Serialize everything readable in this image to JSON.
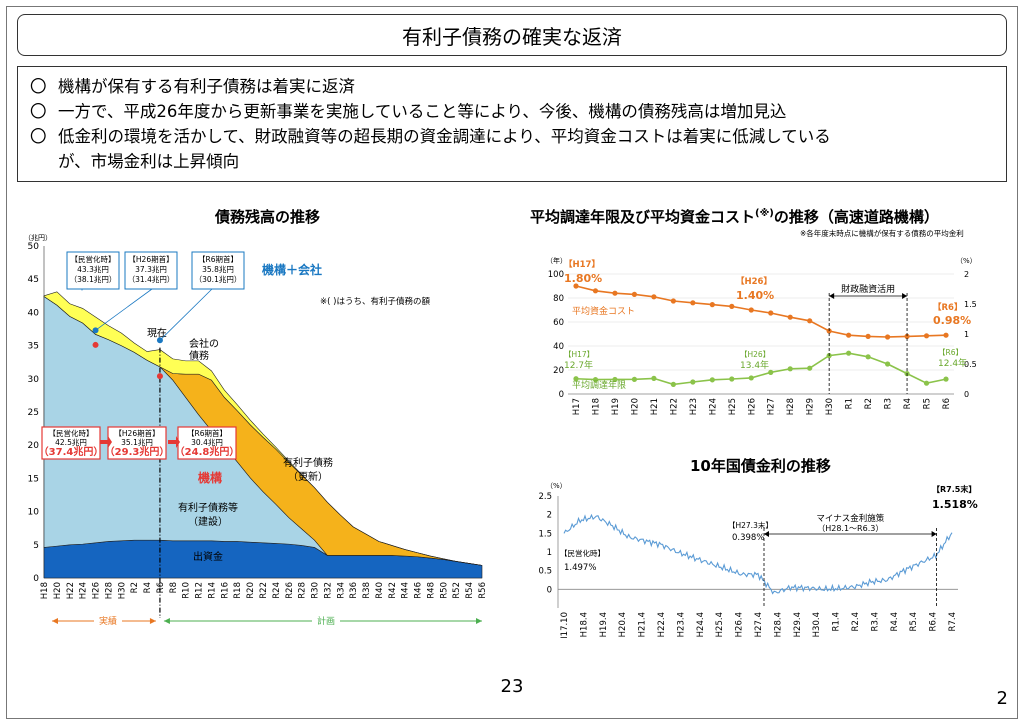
{
  "title": "有利子債務の確実な返済",
  "bullets": [
    {
      "mark": "〇",
      "text": "機構が保有する有利子債務は着実に返済"
    },
    {
      "mark": "〇",
      "text": "一方で、平成26年度から更新事業を実施していること等により、今後、機構の債務残高は増加見込"
    },
    {
      "mark": "〇",
      "text": "低金利の環境を活かして、財政融資等の超長期の資金調達により、平均資金コストは着実に低減している"
    },
    {
      "mark": "",
      "text": "が、市場金利は上昇傾向"
    }
  ],
  "page_center": "23",
  "page_right": "2",
  "chart_data": [
    {
      "type": "area",
      "title": "債務残高の推移",
      "yunit": "（兆円）",
      "ylim": [
        0,
        50
      ],
      "yticks": [
        0,
        5,
        10,
        15,
        20,
        25,
        30,
        35,
        40,
        45,
        50
      ],
      "x": [
        "H18",
        "H20",
        "H22",
        "H24",
        "H26",
        "H28",
        "H30",
        "R2",
        "R4",
        "R6",
        "R8",
        "R10",
        "R12",
        "R14",
        "R16",
        "R18",
        "R20",
        "R22",
        "R24",
        "R26",
        "R28",
        "R30",
        "R32",
        "R34",
        "R36",
        "R38",
        "R40",
        "R42",
        "R44",
        "R46",
        "R48",
        "R50",
        "R52",
        "R54",
        "R56"
      ],
      "xlabels": [
        "H18",
        "H20",
        "H22",
        "H24",
        "H26",
        "H28",
        "H30",
        "R2",
        "R4",
        "R6",
        "R8",
        "R10",
        "R12",
        "R14",
        "R16",
        "R18",
        "R20",
        "R22",
        "R24",
        "R26",
        "R28",
        "R30",
        "R32",
        "R34",
        "R36",
        "R38",
        "R40",
        "R42",
        "R44",
        "R46",
        "R48",
        "R50",
        "R52",
        "R54",
        "R56"
      ],
      "series": [
        {
          "name": "出資金",
          "color": "#1565c0",
          "values": [
            4.6,
            4.8,
            5.0,
            5.1,
            5.3,
            5.5,
            5.6,
            5.7,
            5.7,
            5.7,
            5.6,
            5.6,
            5.6,
            5.6,
            5.5,
            5.5,
            5.4,
            5.3,
            5.2,
            5.1,
            4.9,
            4.6,
            3.4,
            3.4,
            3.4,
            3.4,
            3.4,
            3.4,
            3.3,
            3.2,
            3.0,
            2.8,
            2.5,
            2.2,
            1.9
          ]
        },
        {
          "name": "有利子債務等（建設）",
          "color": "#a9d4e6",
          "values": [
            37.8,
            36.3,
            34.4,
            33.3,
            31.4,
            30.4,
            29.4,
            28.3,
            27.1,
            26.1,
            24.2,
            21.6,
            19.0,
            16.6,
            14.3,
            12.0,
            9.7,
            7.7,
            5.9,
            4.0,
            2.5,
            1.1,
            0,
            0,
            0,
            0,
            0,
            0,
            0,
            0,
            0,
            0,
            0,
            0,
            0
          ]
        },
        {
          "name": "有利子債務（更新）",
          "color": "#f5b21b",
          "values": [
            0,
            0,
            0,
            0,
            0,
            0,
            0,
            0,
            0,
            0,
            1.0,
            3.5,
            6.1,
            7.6,
            7.4,
            7.7,
            8.0,
            8.2,
            8.3,
            8.3,
            8.1,
            7.9,
            8.0,
            6.1,
            4.3,
            3.2,
            2.1,
            1.5,
            1.0,
            0.6,
            0.3,
            0.1,
            0,
            0,
            0
          ]
        },
        {
          "name": "会社の債務",
          "color": "#ffff55",
          "values": [
            0.1,
            2.0,
            1.9,
            2.2,
            2.6,
            2.1,
            1.9,
            1.4,
            1.3,
            2.6,
            2.2,
            2.0,
            2.0,
            1.4,
            1.1,
            0.9,
            0.7,
            0.5,
            0.3,
            0.2,
            0.1,
            0,
            0,
            0,
            0,
            0,
            0,
            0,
            0,
            0,
            0,
            0,
            0,
            0,
            0
          ]
        }
      ],
      "legend_top": "機構＋会社",
      "note": "※( )はうち、有利子債務の額",
      "label_company": "会社の債務",
      "label_now": "現在",
      "label_kikou": "機構",
      "label_kensetsu": "有利子債務等\n（建設）",
      "label_koushin": "有利子債務\n（更新）",
      "label_shusshi": "出資金",
      "callouts_top": [
        {
          "head": "【民営化時】",
          "v1": "43.3兆円",
          "v2": "（38.1兆円）"
        },
        {
          "head": "【H26期首】",
          "v1": "37.3兆円",
          "v2": "（31.4兆円）"
        },
        {
          "head": "【R6期首】",
          "v1": "35.8兆円",
          "v2": "（30.1兆円）"
        }
      ],
      "callouts_bottom": [
        {
          "head": "【民営化時】",
          "v1": "42.5兆円",
          "v2": "（37.4兆円）"
        },
        {
          "head": "【H26期首】",
          "v1": "35.1兆円",
          "v2": "（29.3兆円）"
        },
        {
          "head": "【R6期首】",
          "v1": "30.4兆円",
          "v2": "（24.8兆円）"
        }
      ],
      "period_actual": "実績",
      "period_plan": "計画"
    },
    {
      "type": "line",
      "title": "平均調達年限及び平均資金コスト",
      "title_sup": "(※)",
      "title_tail": "の推移（高速道路機構）",
      "note": "※各年度末時点に機構が保有する債務の平均金利",
      "yunit_left": "（年）",
      "yunit_right": "（%）",
      "ylim_left": [
        0,
        100
      ],
      "yticks_left": [
        0,
        20,
        40,
        60,
        80,
        100
      ],
      "ylim_right": [
        0,
        2
      ],
      "yticks_right": [
        "0",
        "0.5",
        "1",
        "1.5",
        "2"
      ],
      "x": [
        "H17",
        "H18",
        "H19",
        "H20",
        "H21",
        "H22",
        "H23",
        "H24",
        "H25",
        "H26",
        "H27",
        "H28",
        "H29",
        "H30",
        "R1",
        "R2",
        "R3",
        "R4",
        "R5",
        "R6"
      ],
      "series": [
        {
          "name": "平均資金コスト",
          "color": "#e87722",
          "axis": "right",
          "values": [
            1.8,
            1.72,
            1.68,
            1.66,
            1.62,
            1.55,
            1.52,
            1.49,
            1.46,
            1.4,
            1.35,
            1.28,
            1.22,
            1.05,
            0.98,
            0.96,
            0.95,
            0.96,
            0.97,
            0.98
          ]
        },
        {
          "name": "平均調達年限",
          "color": "#8bc34a",
          "axis": "left",
          "values": [
            12.7,
            12.0,
            12.1,
            12.2,
            13.0,
            8.0,
            10.0,
            11.8,
            12.5,
            13.4,
            18.0,
            21.0,
            21.5,
            32.0,
            34.0,
            31.0,
            25.0,
            17.0,
            9.0,
            12.4
          ]
        }
      ],
      "annotations": [
        {
          "label": "【H17】",
          "value": "1.80%",
          "color": "#e87722"
        },
        {
          "label": "【H26】",
          "value": "1.40%",
          "color": "#e87722"
        },
        {
          "label": "【R6】",
          "value": "0.98%",
          "color": "#e87722"
        },
        {
          "label": "【H17】",
          "value": "12.7年",
          "color": "#6aa82d"
        },
        {
          "label": "【H26】",
          "value": "13.4年",
          "color": "#6aa82d"
        },
        {
          "label": "【R6】",
          "value": "12.4年",
          "color": "#6aa82d"
        }
      ],
      "bracket_label": "財政融資活用"
    },
    {
      "type": "line",
      "title": "10年国債金利の推移",
      "yunit": "（%）",
      "ylim": [
        -0.5,
        2.5
      ],
      "yticks": [
        "0",
        "0.5",
        "1",
        "1.5",
        "2",
        "2.5"
      ],
      "xlabels": [
        "H17.10",
        "H18.4",
        "H19.4",
        "H20.4",
        "H21.4",
        "H22.4",
        "H23.4",
        "H24.4",
        "H25.4",
        "H26.4",
        "H27.4",
        "H28.4",
        "H29.4",
        "H30.4",
        "R1.4",
        "R2.4",
        "R3.4",
        "R4.4",
        "R5.4",
        "R6.4",
        "R7.4"
      ],
      "series": [
        {
          "name": "10年国債金利",
          "color": "#5b9bd5",
          "values": [
            1.497,
            1.85,
            1.95,
            1.7,
            1.4,
            1.3,
            1.2,
            1.0,
            0.85,
            0.7,
            0.55,
            0.4,
            0.398,
            -0.1,
            0.05,
            0.04,
            0.0,
            0.02,
            0.07,
            0.2,
            0.25,
            0.5,
            0.7,
            0.9,
            1.518
          ]
        }
      ],
      "annotations": [
        {
          "label": "【民営化時】",
          "value": "1.497%"
        },
        {
          "label": "【H27.3末】",
          "value": "0.398%"
        },
        {
          "label": "【R7.5末】",
          "value": "1.518%"
        }
      ],
      "bracket_label": "マイナス金利施策",
      "bracket_sub": "（H28.1～R6.3）"
    }
  ]
}
